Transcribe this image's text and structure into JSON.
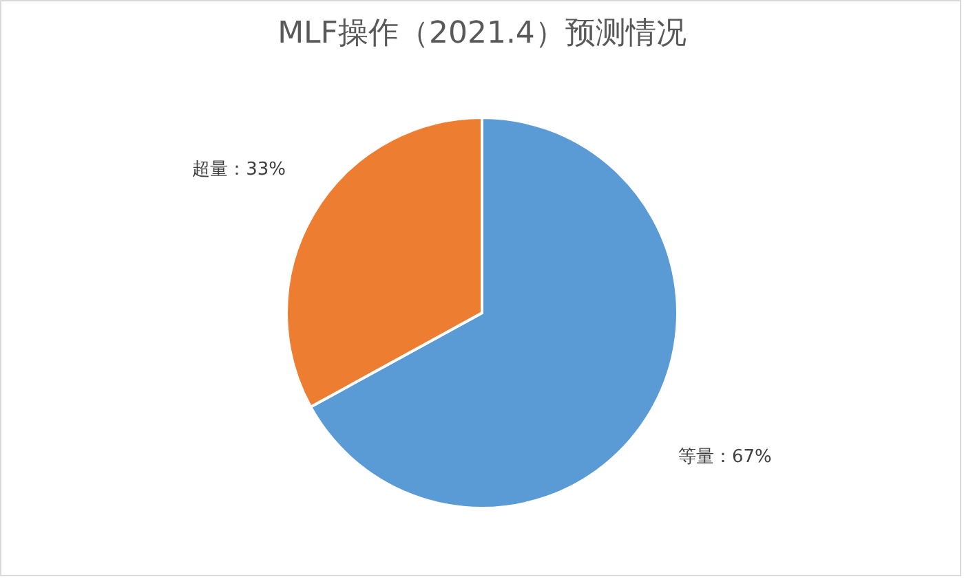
{
  "chart_data": {
    "type": "pie",
    "title": "MLF操作（2021.4）预测情况",
    "categories": [
      "等量",
      "超量"
    ],
    "values": [
      67,
      33
    ],
    "colors": [
      "#5b9bd5",
      "#ed7d31"
    ],
    "value_labels": [
      "67%",
      "33%"
    ],
    "legend": false
  }
}
